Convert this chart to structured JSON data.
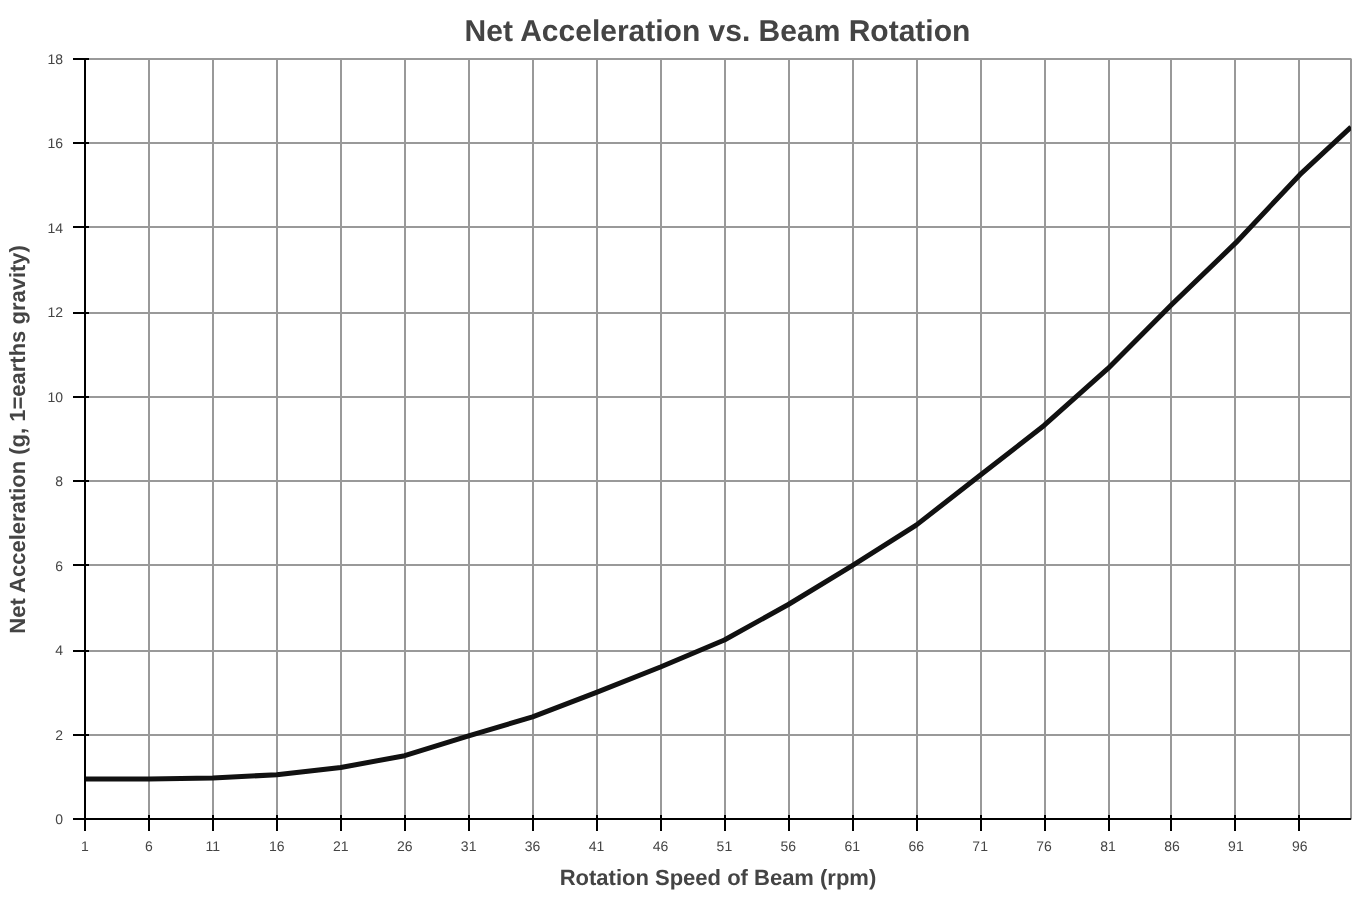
{
  "chart_data": {
    "type": "line",
    "title": "Net Acceleration vs. Beam Rotation",
    "xlabel": "Rotation Speed of Beam (rpm)",
    "ylabel": "Net Acceleration (g, 1=earths gravity)",
    "x": [
      1,
      6,
      11,
      16,
      21,
      26,
      31,
      36,
      41,
      46,
      51,
      56,
      61,
      66,
      71,
      76,
      81,
      86,
      91,
      96,
      100
    ],
    "series": [
      {
        "color": "#111111",
        "values": [
          0.95,
          0.95,
          0.97,
          1.05,
          1.22,
          1.5,
          1.97,
          2.42,
          3.0,
          3.6,
          4.24,
          5.08,
          6.0,
          6.96,
          8.14,
          9.32,
          10.67,
          12.19,
          13.65,
          15.26,
          16.39
        ]
      }
    ],
    "xlim": [
      1,
      100
    ],
    "xticks": [
      1,
      6,
      11,
      16,
      21,
      26,
      31,
      36,
      41,
      46,
      51,
      56,
      61,
      66,
      71,
      76,
      81,
      86,
      91,
      96
    ],
    "ylim": [
      0,
      18
    ],
    "yticks": [
      0,
      2,
      4,
      6,
      8,
      10,
      12,
      14,
      16,
      18
    ],
    "grid": true,
    "marker": "none",
    "line_style": "solid"
  }
}
